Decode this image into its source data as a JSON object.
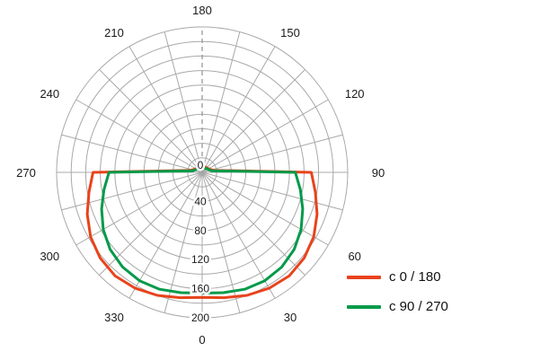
{
  "chart_data": {
    "type": "line",
    "variant": "polar",
    "orientation": {
      "zero_deg": "bottom",
      "deg_90": "right",
      "direction": "0 at bottom, 90 at right, 180 at top, 270 at left"
    },
    "grid": true,
    "spoke_step_deg": 15,
    "dashed_axis_deg": 180,
    "angle_labels_deg": [
      0,
      30,
      60,
      90,
      120,
      150,
      180,
      210,
      240,
      270,
      300,
      330
    ],
    "radial_axis": {
      "min": 0,
      "max": 200,
      "ring_step": 20,
      "tick_labels": [
        0,
        40,
        80,
        120,
        160,
        200
      ]
    },
    "legend_position": "bottom-right",
    "angles_deg": [
      0,
      10,
      20,
      30,
      40,
      50,
      60,
      70,
      80,
      90,
      100,
      110,
      120,
      130,
      140,
      150,
      160,
      170,
      180,
      190,
      200,
      210,
      220,
      230,
      240,
      250,
      260,
      270,
      280,
      290,
      300,
      310,
      320,
      330,
      340,
      350
    ],
    "series": [
      {
        "name": "c 0 / 180",
        "color": "#e8431c",
        "values": [
          172,
          175,
          180,
          184,
          186,
          183,
          177,
          168,
          158,
          150,
          16,
          12,
          10,
          9,
          9,
          8,
          8,
          8,
          8,
          8,
          8,
          8,
          9,
          9,
          10,
          12,
          16,
          150,
          158,
          168,
          177,
          183,
          186,
          184,
          180,
          175
        ]
      },
      {
        "name": "c 90 / 270",
        "color": "#009a49",
        "values": [
          166,
          168,
          171,
          172,
          170,
          165,
          157,
          147,
          137,
          128,
          13,
          10,
          9,
          8,
          7,
          7,
          7,
          7,
          7,
          7,
          7,
          7,
          7,
          8,
          9,
          10,
          13,
          128,
          137,
          147,
          157,
          165,
          170,
          172,
          171,
          168
        ]
      }
    ]
  },
  "colors": {
    "grid": "#a9a9a9",
    "dashed_axis": "#8f8f8f",
    "text": "#1a1a1a",
    "background": "#ffffff"
  }
}
